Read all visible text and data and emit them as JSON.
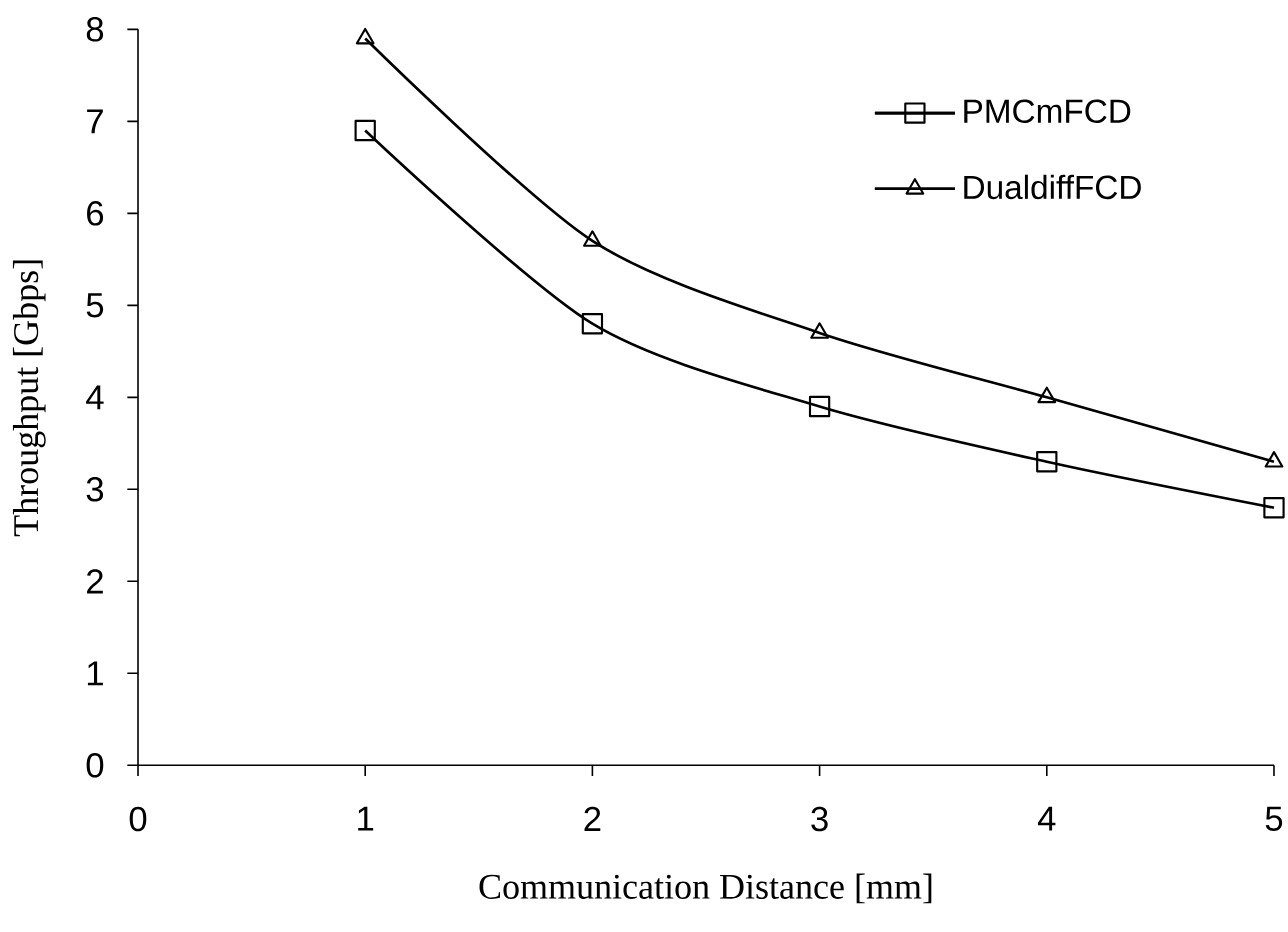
{
  "chart_data": {
    "type": "line",
    "xlabel": "Communication Distance [mm]",
    "ylabel": "Throughput [Gbps]",
    "x": [
      1,
      2,
      3,
      4,
      5
    ],
    "series": [
      {
        "name": "PMCmFCD",
        "color": "#000000",
        "marker": "square",
        "values": [
          6.9,
          4.8,
          3.9,
          3.3,
          2.8
        ]
      },
      {
        "name": "DualdiffFCD",
        "color": "#000000",
        "marker": "triangle",
        "values": [
          7.9,
          5.7,
          4.7,
          4.0,
          3.3
        ]
      }
    ],
    "xlim": [
      0,
      5
    ],
    "xticks": [
      0,
      1,
      2,
      3,
      4,
      5
    ],
    "ylim": [
      0,
      8
    ],
    "yticks": [
      0,
      1,
      2,
      3,
      4,
      5,
      6,
      7,
      8
    ],
    "legend": "top right",
    "grid": false,
    "line_style": "solid"
  }
}
